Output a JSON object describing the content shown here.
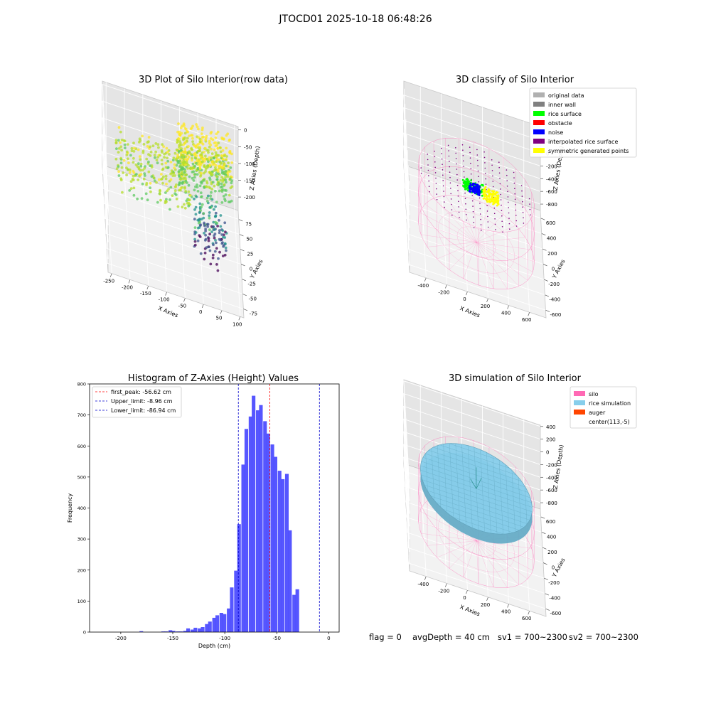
{
  "figure": {
    "suptitle": "JTOCD01 2025-10-18 06:48:26",
    "footer": {
      "flag": "flag = 0",
      "avg_depth": "avgDepth = 40 cm",
      "sv1": "sv1 = 700~2300",
      "sv2": "sv2 = 700~2300"
    }
  },
  "chart_data": [
    {
      "type": "scatter",
      "projection": "3d",
      "title": "3D Plot of Silo Interior(row data)",
      "xlabel": "X Axies",
      "ylabel": "Y Axies",
      "zlabel": "Z Axies (Depth)",
      "xlim": [
        -260,
        110
      ],
      "ylim": [
        -90,
        90
      ],
      "zlim": [
        -240,
        10
      ],
      "xticks": [
        -250,
        -200,
        -150,
        -100,
        -50,
        0,
        50,
        100
      ],
      "yticks": [
        -75,
        -50,
        -25,
        0,
        25,
        50,
        75
      ],
      "zticks": [
        0,
        -50,
        -100,
        -150,
        -200
      ],
      "colormap": "viridis",
      "grid": true
    },
    {
      "type": "scatter",
      "projection": "3d",
      "title": "3D classify of Silo Interior",
      "xlabel": "X Axies",
      "ylabel": "Y Axies",
      "zlabel": "Z Axies (Depth)",
      "xlim": [
        -560,
        760
      ],
      "ylim": [
        -700,
        700
      ],
      "zlim": [
        -900,
        420
      ],
      "xticks": [
        -400,
        -200,
        0,
        200,
        400,
        600
      ],
      "yticks": [
        -600,
        -400,
        -200,
        0,
        200,
        400,
        600
      ],
      "zticks": [
        200,
        0,
        -200,
        -400,
        -600,
        -800
      ],
      "legend_position": "top-right",
      "legend": [
        {
          "label": "original data",
          "color": "#b0b0b0"
        },
        {
          "label": "inner wall",
          "color": "#808080"
        },
        {
          "label": "rice surface",
          "color": "#00ff00"
        },
        {
          "label": "obstacle",
          "color": "#ff0000"
        },
        {
          "label": "noise",
          "color": "#0000ff"
        },
        {
          "label": "interpolated rice surface",
          "color": "#800080"
        },
        {
          "label": "symmetric generated points",
          "color": "#ffff00"
        }
      ],
      "grid": true
    },
    {
      "type": "bar",
      "title": "Histogram of Z-Axies (Height) Values",
      "xlabel": "Depth (cm)",
      "ylabel": "Frequency",
      "xlim": [
        -230,
        10
      ],
      "ylim": [
        0,
        800
      ],
      "xticks": [
        -200,
        -150,
        -100,
        -50,
        0
      ],
      "yticks": [
        0,
        100,
        200,
        300,
        400,
        500,
        600,
        700,
        800
      ],
      "bin_width": 3.5,
      "bins": [
        [
          -182,
          3
        ],
        [
          -161,
          2
        ],
        [
          -158,
          2
        ],
        [
          -154,
          6
        ],
        [
          -151,
          4
        ],
        [
          -147,
          2
        ],
        [
          -144,
          2
        ],
        [
          -140,
          4
        ],
        [
          -137,
          12
        ],
        [
          -133,
          8
        ],
        [
          -130,
          14
        ],
        [
          -126,
          12
        ],
        [
          -123,
          16
        ],
        [
          -119,
          26
        ],
        [
          -116,
          34
        ],
        [
          -112,
          46
        ],
        [
          -109,
          54
        ],
        [
          -105,
          62
        ],
        [
          -102,
          58
        ],
        [
          -98,
          76
        ],
        [
          -95,
          144
        ],
        [
          -91,
          198
        ],
        [
          -88,
          348
        ],
        [
          -84,
          540
        ],
        [
          -81,
          655
        ],
        [
          -77,
          695
        ],
        [
          -74,
          762
        ],
        [
          -70,
          715
        ],
        [
          -67,
          732
        ],
        [
          -63,
          680
        ],
        [
          -60,
          640
        ],
        [
          -56,
          605
        ],
        [
          -53,
          565
        ],
        [
          -49,
          520
        ],
        [
          -46,
          493
        ],
        [
          -42,
          510
        ],
        [
          -39,
          328
        ],
        [
          -35,
          120
        ],
        [
          -32,
          138
        ]
      ],
      "color": "#4d4dff",
      "vlines": [
        {
          "label": "first_peak: -56.62 cm",
          "x": -56.62,
          "color": "#ff0000"
        },
        {
          "label": "Upper_limit: -8.96 cm",
          "x": -8.96,
          "color": "#0000cc"
        },
        {
          "label": "Lower_limit: -86.94 cm",
          "x": -86.94,
          "color": "#0000cc"
        }
      ],
      "legend_position": "top-left",
      "grid": false
    },
    {
      "type": "surface",
      "projection": "3d",
      "title": "3D simulation of Silo Interior",
      "xlabel": "X Axies",
      "ylabel": "Y Axies",
      "zlabel": "Z Axies (Depth)",
      "xlim": [
        -560,
        760
      ],
      "ylim": [
        -700,
        700
      ],
      "zlim": [
        -900,
        420
      ],
      "xticks": [
        -400,
        -200,
        0,
        200,
        400,
        600
      ],
      "yticks": [
        -600,
        -400,
        -200,
        0,
        200,
        400,
        600
      ],
      "zticks": [
        400,
        200,
        0,
        -200,
        -400,
        -600,
        -800
      ],
      "legend_position": "top-right",
      "legend": [
        {
          "label": "silo",
          "color": "#ff69b4"
        },
        {
          "label": "rice simulation",
          "color": "#87ceeb"
        },
        {
          "label": "auger",
          "color": "#ff4500"
        },
        {
          "label": "center(113,-5)",
          "color": "#ffffff"
        }
      ],
      "grid": true
    }
  ]
}
